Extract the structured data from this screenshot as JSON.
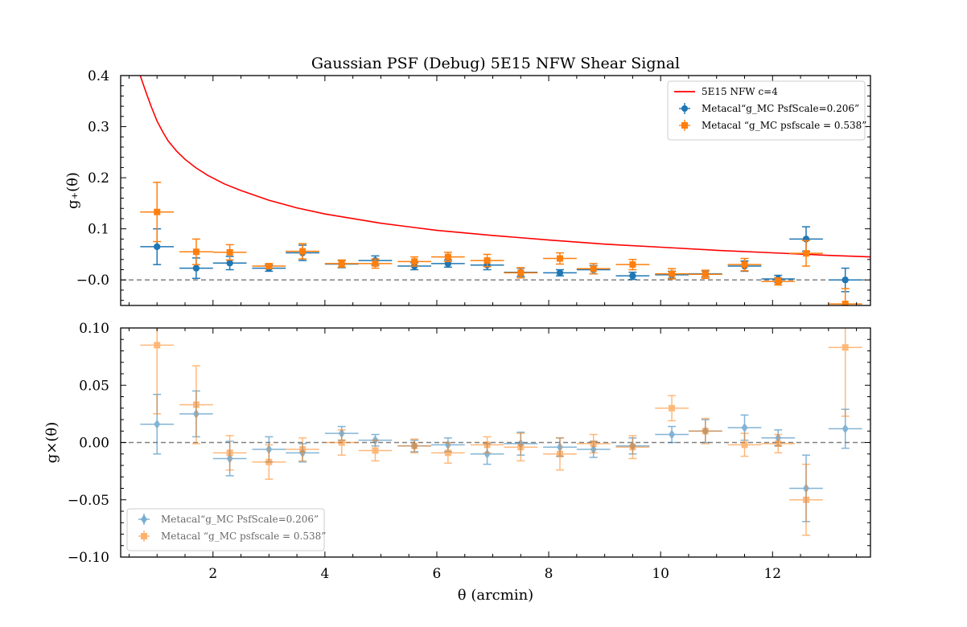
{
  "chart_data": [
    {
      "type": "scatter",
      "title": "Gaussian PSF (Debug) 5E15 NFW Shear Signal",
      "ylabel": "g₊(θ)",
      "xlim": [
        0.35,
        13.75
      ],
      "ylim": [
        -0.05,
        0.4
      ],
      "yticks": [
        "−0.0",
        "0.1",
        "0.2",
        "0.3",
        "0.4"
      ],
      "grid": false,
      "legend_position": "upper right",
      "reference_line": 0,
      "model": {
        "name": "5E15 NFW c=4",
        "color": "#ff0000",
        "x": [
          0.7,
          0.8,
          0.9,
          1.0,
          1.1,
          1.2,
          1.35,
          1.5,
          1.7,
          1.9,
          2.2,
          2.5,
          3.0,
          3.5,
          4.0,
          5.0,
          6.0,
          7.0,
          8.0,
          9.0,
          10.0,
          11.0,
          12.0,
          13.0,
          13.75
        ],
        "y": [
          0.4,
          0.368,
          0.338,
          0.311,
          0.29,
          0.272,
          0.252,
          0.236,
          0.219,
          0.205,
          0.188,
          0.175,
          0.156,
          0.141,
          0.129,
          0.111,
          0.097,
          0.087,
          0.078,
          0.07,
          0.064,
          0.058,
          0.053,
          0.048,
          0.045
        ]
      },
      "series": [
        {
          "name": "Metacal“g_MC PsfScale=0.206”",
          "color": "#1f77b4",
          "marker": "circle",
          "x": [
            1.0,
            1.7,
            2.3,
            3.0,
            3.6,
            4.3,
            4.9,
            5.6,
            6.2,
            6.9,
            7.5,
            8.2,
            8.8,
            9.5,
            10.2,
            10.8,
            11.5,
            12.1,
            12.6,
            13.3
          ],
          "xerr": [
            0.3,
            0.3,
            0.3,
            0.3,
            0.3,
            0.3,
            0.3,
            0.3,
            0.3,
            0.3,
            0.3,
            0.3,
            0.3,
            0.3,
            0.3,
            0.3,
            0.3,
            0.3,
            0.3,
            0.3
          ],
          "y": [
            0.065,
            0.023,
            0.033,
            0.023,
            0.053,
            0.031,
            0.038,
            0.027,
            0.032,
            0.029,
            0.015,
            0.014,
            0.02,
            0.008,
            0.01,
            0.012,
            0.027,
            0.002,
            0.08,
            0.0
          ],
          "yerr": [
            0.035,
            0.02,
            0.013,
            0.006,
            0.015,
            0.007,
            0.009,
            0.007,
            0.007,
            0.009,
            0.008,
            0.006,
            0.008,
            0.007,
            0.007,
            0.006,
            0.01,
            0.007,
            0.024,
            0.023
          ]
        },
        {
          "name": "Metacal “g_MC psfscale = 0.538”",
          "color": "#ff7f0e",
          "marker": "square",
          "x": [
            1.0,
            1.7,
            2.3,
            3.0,
            3.6,
            4.3,
            4.9,
            5.6,
            6.2,
            6.9,
            7.5,
            8.2,
            8.8,
            9.5,
            10.2,
            10.8,
            11.5,
            12.1,
            12.6,
            13.3
          ],
          "xerr": [
            0.3,
            0.3,
            0.3,
            0.3,
            0.3,
            0.3,
            0.3,
            0.3,
            0.3,
            0.3,
            0.3,
            0.3,
            0.3,
            0.3,
            0.3,
            0.3,
            0.3,
            0.3,
            0.3,
            0.3
          ],
          "y": [
            0.133,
            0.055,
            0.054,
            0.027,
            0.056,
            0.032,
            0.032,
            0.036,
            0.045,
            0.038,
            0.014,
            0.042,
            0.022,
            0.03,
            0.012,
            0.011,
            0.03,
            -0.003,
            0.052,
            -0.047
          ],
          "yerr": [
            0.058,
            0.025,
            0.015,
            0.005,
            0.015,
            0.007,
            0.009,
            0.009,
            0.009,
            0.012,
            0.01,
            0.011,
            0.01,
            0.01,
            0.01,
            0.008,
            0.012,
            0.007,
            0.025,
            0.03
          ]
        }
      ]
    },
    {
      "type": "scatter",
      "xlabel": "θ (arcmin)",
      "ylabel": "g×(θ)",
      "xlim": [
        0.35,
        13.75
      ],
      "ylim": [
        -0.1,
        0.1
      ],
      "xticks": [
        "2",
        "4",
        "6",
        "8",
        "10",
        "12"
      ],
      "yticks": [
        "−0.10",
        "−0.05",
        "0.00",
        "0.05",
        "0.10"
      ],
      "grid": false,
      "legend_position": "lower left",
      "reference_line": 0,
      "series": [
        {
          "name": "Metacal“g_MC PsfScale=0.206”",
          "color": "#1f77b4",
          "marker": "diamond",
          "x": [
            1.0,
            1.7,
            2.3,
            3.0,
            3.6,
            4.3,
            4.9,
            5.6,
            6.2,
            6.9,
            7.5,
            8.2,
            8.8,
            9.5,
            10.2,
            10.8,
            11.5,
            12.1,
            12.6,
            13.3
          ],
          "xerr": [
            0.3,
            0.3,
            0.3,
            0.3,
            0.3,
            0.3,
            0.3,
            0.3,
            0.3,
            0.3,
            0.3,
            0.3,
            0.3,
            0.3,
            0.3,
            0.3,
            0.3,
            0.3,
            0.3,
            0.3
          ],
          "y": [
            0.016,
            0.025,
            -0.014,
            -0.006,
            -0.009,
            0.008,
            0.002,
            -0.003,
            -0.002,
            -0.01,
            -0.001,
            -0.004,
            -0.006,
            -0.003,
            0.007,
            0.01,
            0.013,
            0.004,
            -0.04,
            0.012
          ],
          "yerr": [
            0.026,
            0.02,
            0.015,
            0.011,
            0.008,
            0.006,
            0.005,
            0.005,
            0.006,
            0.009,
            0.01,
            0.008,
            0.007,
            0.007,
            0.007,
            0.01,
            0.011,
            0.007,
            0.029,
            0.017
          ]
        },
        {
          "name": "Metacal “g_MC psfscale = 0.538”",
          "color": "#ff7f0e",
          "marker": "square",
          "x": [
            1.0,
            1.7,
            2.3,
            3.0,
            3.6,
            4.3,
            4.9,
            5.6,
            6.2,
            6.9,
            7.5,
            8.2,
            8.8,
            9.5,
            10.2,
            10.8,
            11.5,
            12.1,
            12.6,
            13.3
          ],
          "xerr": [
            0.3,
            0.3,
            0.3,
            0.3,
            0.3,
            0.3,
            0.3,
            0.3,
            0.3,
            0.3,
            0.3,
            0.3,
            0.3,
            0.3,
            0.3,
            0.3,
            0.3,
            0.3,
            0.3,
            0.3
          ],
          "y": [
            0.085,
            0.033,
            -0.009,
            -0.017,
            -0.006,
            0.0,
            -0.007,
            -0.003,
            -0.009,
            -0.002,
            -0.004,
            -0.01,
            -0.001,
            -0.004,
            0.03,
            0.01,
            -0.002,
            -0.001,
            -0.05,
            0.083
          ],
          "yerr": [
            0.06,
            0.034,
            0.015,
            0.015,
            0.01,
            0.011,
            0.009,
            0.006,
            0.009,
            0.007,
            0.012,
            0.014,
            0.008,
            0.01,
            0.011,
            0.011,
            0.01,
            0.008,
            0.031,
            0.06
          ]
        }
      ]
    }
  ]
}
